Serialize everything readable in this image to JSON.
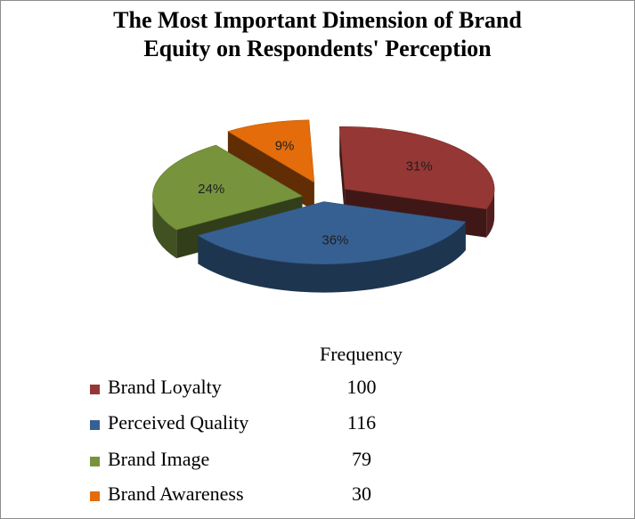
{
  "chart_data": {
    "type": "pie",
    "title": "The Most Important Dimension of Brand Equity on Respondents' Perception",
    "title_lines": [
      "The Most Important Dimension of Brand",
      "Equity on Respondents' Perception"
    ],
    "slices": [
      {
        "label": "Brand Loyalty",
        "value": 100,
        "percent": "31%",
        "color": "#953735"
      },
      {
        "label": "Perceived Quality",
        "value": 116,
        "percent": "36%",
        "color": "#376092"
      },
      {
        "label": "Brand Image",
        "value": 79,
        "percent": "24%",
        "color": "#77933c"
      },
      {
        "label": "Brand Awareness",
        "value": 30,
        "percent": "9%",
        "color": "#e46c0a"
      }
    ],
    "table_header": "Frequency",
    "style": "3d-exploded"
  }
}
